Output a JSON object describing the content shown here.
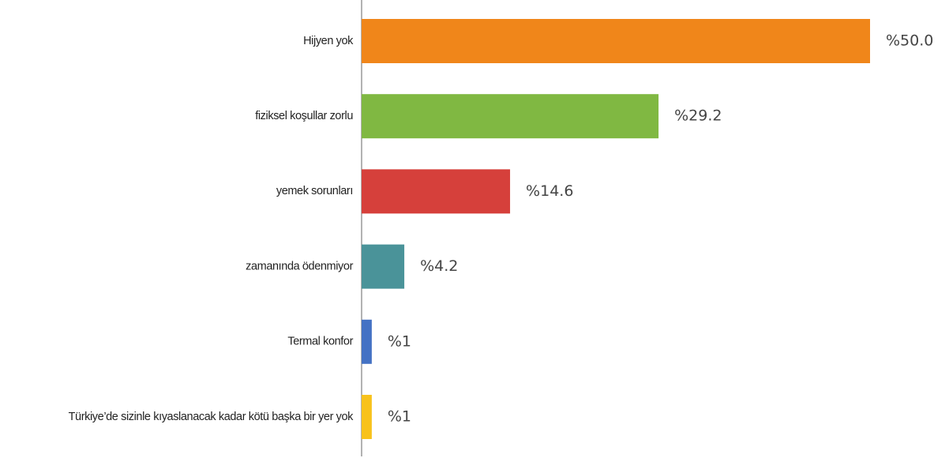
{
  "chart_data": {
    "type": "bar",
    "orientation": "horizontal",
    "categories": [
      "Hijyen yok",
      "fiziksel koşullar zorlu",
      "yemek sorunları",
      "zamanında ödenmiyor",
      "Termal konfor",
      "Türkiye’de sizinle kıyaslanacak kadar kötü başka bir yer yok"
    ],
    "values": [
      50.0,
      29.2,
      14.6,
      4.2,
      1,
      1
    ],
    "value_labels": [
      "%50.0",
      "%29.2",
      "%14.6",
      "%4.2",
      "%1",
      "%1"
    ],
    "colors": [
      "#f0861a",
      "#80b842",
      "#d6403b",
      "#4a9399",
      "#4472c4",
      "#f8c21c"
    ],
    "xlim": [
      0,
      50
    ]
  }
}
